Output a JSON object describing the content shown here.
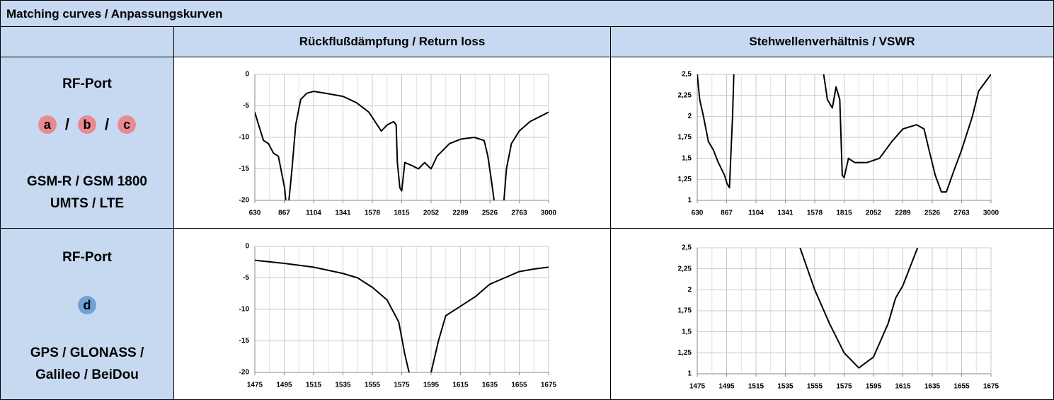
{
  "title": "Matching curves / Anpassungskurven",
  "header": [
    "Rückflußdämpfung / Return loss",
    "Stehwellenverhältnis / VSWR"
  ],
  "rows": [
    {
      "port_label": "RF-Port",
      "ports": [
        "a",
        "b",
        "c"
      ],
      "separator": "/",
      "bands": [
        "GSM-R / GSM 1800",
        "UMTS / LTE"
      ]
    },
    {
      "port_label": "RF-Port",
      "ports": [
        "d"
      ],
      "bands": [
        "GPS / GLONASS /",
        "Galileo / BeiDou"
      ]
    }
  ],
  "chart_data": [
    {
      "type": "line",
      "color": "#000000",
      "grid": true,
      "xlim": [
        630,
        3000
      ],
      "xticks": [
        630,
        867,
        1104,
        1341,
        1578,
        1815,
        2052,
        2289,
        2526,
        2763,
        3000
      ],
      "ylim": [
        -20,
        0
      ],
      "yticks": [
        0,
        -5,
        -10,
        -15,
        -20
      ],
      "x": [
        630,
        660,
        700,
        740,
        780,
        820,
        850,
        870,
        880,
        892,
        905,
        930,
        960,
        1000,
        1050,
        1104,
        1200,
        1341,
        1450,
        1550,
        1600,
        1650,
        1700,
        1750,
        1770,
        1780,
        1800,
        1815,
        1840,
        1900,
        1950,
        2000,
        2052,
        2100,
        2200,
        2289,
        2400,
        2480,
        2510,
        2540,
        2560,
        2600,
        2640,
        2660,
        2700,
        2763,
        2850,
        2950,
        3000
      ],
      "values": [
        -6,
        -8,
        -10.5,
        -11,
        -12.5,
        -13,
        -16,
        -18,
        -20,
        null,
        -20,
        -15,
        -8,
        -4,
        -3,
        -2.7,
        -3,
        -3.5,
        -4.5,
        -6,
        -7.5,
        -9,
        -8,
        -7.5,
        -8,
        -14,
        -18,
        -18.5,
        -14,
        -14.5,
        -15,
        -14,
        -15,
        -13,
        -11,
        -10.3,
        -10,
        -10.5,
        -13,
        -17,
        -20,
        null,
        -20,
        -15,
        -11,
        -9,
        -7.5,
        -6.5,
        -6
      ]
    },
    {
      "type": "line",
      "color": "#000000",
      "grid": true,
      "xlim": [
        630,
        3000
      ],
      "xticks": [
        630,
        867,
        1104,
        1341,
        1578,
        1815,
        2052,
        2289,
        2526,
        2763,
        3000
      ],
      "ylim": [
        1,
        2.5
      ],
      "yticks": [
        {
          "value": 2.5,
          "label": "2,5"
        },
        {
          "value": 2.25,
          "label": "2,25"
        },
        2,
        {
          "value": 1.75,
          "label": "1,75"
        },
        {
          "value": 1.5,
          "label": "1,5"
        },
        {
          "value": 1.25,
          "label": "1,25"
        },
        1
      ],
      "x": [
        630,
        650,
        680,
        720,
        760,
        800,
        850,
        870,
        890,
        900,
        915,
        925,
        1300,
        1650,
        1680,
        1720,
        1750,
        1780,
        1800,
        1815,
        1850,
        1900,
        2000,
        2100,
        2200,
        2289,
        2400,
        2460,
        2500,
        2550,
        2600,
        2640,
        2700,
        2763,
        2850,
        2900,
        2950,
        3000
      ],
      "values": [
        2.5,
        2.2,
        2.0,
        1.7,
        1.6,
        1.45,
        1.3,
        1.2,
        1.15,
        1.5,
        2.0,
        2.5,
        null,
        2.5,
        2.2,
        2.1,
        2.35,
        2.2,
        1.3,
        1.27,
        1.5,
        1.45,
        1.45,
        1.5,
        1.7,
        1.85,
        1.9,
        1.85,
        1.6,
        1.3,
        1.1,
        1.1,
        1.35,
        1.6,
        2.0,
        2.3,
        2.4,
        2.5
      ]
    },
    {
      "type": "line",
      "color": "#000000",
      "grid": true,
      "xlim": [
        1475,
        1675
      ],
      "xticks": [
        1475,
        1495,
        1515,
        1535,
        1555,
        1575,
        1595,
        1615,
        1635,
        1655,
        1675
      ],
      "ylim": [
        -20,
        0
      ],
      "yticks": [
        0,
        -5,
        -10,
        -15,
        -20
      ],
      "x": [
        1475,
        1495,
        1515,
        1535,
        1545,
        1555,
        1565,
        1573,
        1577,
        1580,
        1588,
        1595,
        1600,
        1605,
        1615,
        1625,
        1635,
        1645,
        1655,
        1665,
        1675
      ],
      "values": [
        -2.2,
        -2.7,
        -3.3,
        -4.3,
        -5,
        -6.5,
        -8.5,
        -12,
        -17,
        -20,
        null,
        -20,
        -15,
        -11,
        -9.5,
        -8,
        -6,
        -5,
        -4,
        -3.6,
        -3.3
      ]
    },
    {
      "type": "line",
      "color": "#000000",
      "grid": true,
      "xlim": [
        1475,
        1675
      ],
      "xticks": [
        1475,
        1495,
        1515,
        1535,
        1555,
        1575,
        1595,
        1615,
        1635,
        1655,
        1675
      ],
      "ylim": [
        1,
        2.5
      ],
      "yticks": [
        {
          "value": 2.5,
          "label": "2,5"
        },
        {
          "value": 2.25,
          "label": "2,25"
        },
        2,
        {
          "value": 1.75,
          "label": "1,75"
        },
        {
          "value": 1.5,
          "label": "1,5"
        },
        {
          "value": 1.25,
          "label": "1,25"
        },
        1
      ],
      "x": [
        1545,
        1555,
        1565,
        1575,
        1585,
        1595,
        1605,
        1610,
        1615,
        1625
      ],
      "values": [
        2.5,
        2.0,
        1.6,
        1.25,
        1.07,
        1.2,
        1.6,
        1.9,
        2.05,
        2.5
      ]
    }
  ]
}
